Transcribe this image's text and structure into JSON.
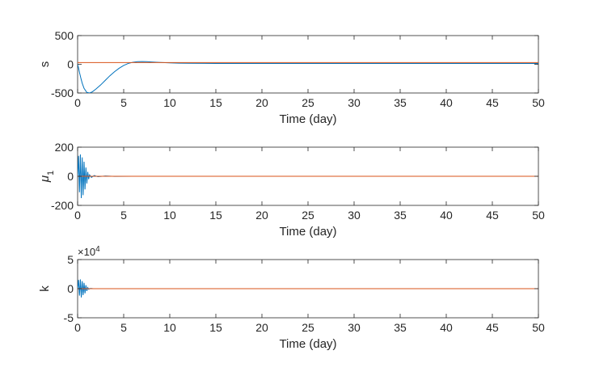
{
  "chart_data": [
    {
      "type": "line",
      "ylabel": "s",
      "xlabel": "Time (day)",
      "xlim": [
        0,
        50
      ],
      "ylim": [
        -500,
        500
      ],
      "xticks": [
        "0",
        "5",
        "10",
        "15",
        "20",
        "25",
        "30",
        "35",
        "40",
        "45",
        "50"
      ],
      "yticks": [
        "-500",
        "0",
        "500"
      ],
      "series": [
        {
          "color": "#0072BD",
          "x": [
            0,
            0.1,
            0.2,
            0.35,
            0.5,
            0.7,
            1.0,
            1.3,
            1.6,
            2.0,
            2.5,
            3.0,
            3.5,
            4.0,
            4.5,
            5.0,
            5.5,
            6.0,
            6.5,
            7.0,
            7.5,
            8.0,
            9.0,
            10.0,
            11.0,
            12.0,
            15.0,
            20.0,
            30.0,
            40.0,
            50.0
          ],
          "y": [
            0,
            -60,
            -140,
            -240,
            -330,
            -420,
            -490,
            -500,
            -480,
            -430,
            -360,
            -280,
            -200,
            -130,
            -70,
            -20,
            15,
            35,
            45,
            47,
            45,
            40,
            32,
            25,
            20,
            18,
            15,
            15,
            15,
            15,
            15
          ]
        },
        {
          "color": "#D95319",
          "x": [
            0,
            50
          ],
          "y": [
            30,
            30
          ]
        }
      ]
    },
    {
      "type": "line",
      "ylabel": "μ",
      "ylabel_sub": "1",
      "xlabel": "Time (day)",
      "xlim": [
        0,
        50
      ],
      "ylim": [
        -200,
        200
      ],
      "xticks": [
        "0",
        "5",
        "10",
        "15",
        "20",
        "25",
        "30",
        "35",
        "40",
        "45",
        "50"
      ],
      "yticks": [
        "-200",
        "0",
        "200"
      ],
      "series": [
        {
          "color": "#0072BD",
          "x": [
            0,
            0.1,
            0.2,
            0.3,
            0.4,
            0.5,
            0.6,
            0.7,
            0.8,
            0.9,
            1.0,
            1.1,
            1.2,
            1.3,
            1.5,
            1.8,
            2.2,
            3.0,
            4.0,
            6.0,
            10.0,
            50.0
          ],
          "y": [
            0,
            140,
            -110,
            150,
            -150,
            130,
            -130,
            100,
            -90,
            60,
            -50,
            30,
            -20,
            10,
            -8,
            5,
            -3,
            2,
            -1,
            0,
            0,
            0
          ]
        },
        {
          "color": "#D95319",
          "x": [
            0,
            50
          ],
          "y": [
            0,
            0
          ]
        }
      ]
    },
    {
      "type": "line",
      "ylabel": "k",
      "xlabel": "Time (day)",
      "exponent_label": "×10",
      "exponent_power": "4",
      "xlim": [
        0,
        50
      ],
      "ylim": [
        -5,
        5
      ],
      "xticks": [
        "0",
        "5",
        "10",
        "15",
        "20",
        "25",
        "30",
        "35",
        "40",
        "45",
        "50"
      ],
      "yticks": [
        "-5",
        "0",
        "5"
      ],
      "series": [
        {
          "color": "#0072BD",
          "x": [
            0,
            0.1,
            0.2,
            0.3,
            0.4,
            0.5,
            0.6,
            0.7,
            0.8,
            0.9,
            1.0,
            1.1,
            1.2,
            1.4,
            1.7,
            2.0,
            3.0,
            50.0
          ],
          "y": [
            0,
            1.5,
            -1.2,
            1.6,
            -1.5,
            1.3,
            -1.1,
            1.0,
            -0.8,
            0.6,
            -0.4,
            0.2,
            -0.1,
            0.05,
            0,
            0,
            0,
            0
          ]
        },
        {
          "color": "#D95319",
          "x": [
            0,
            50
          ],
          "y": [
            0,
            0
          ]
        }
      ]
    }
  ]
}
